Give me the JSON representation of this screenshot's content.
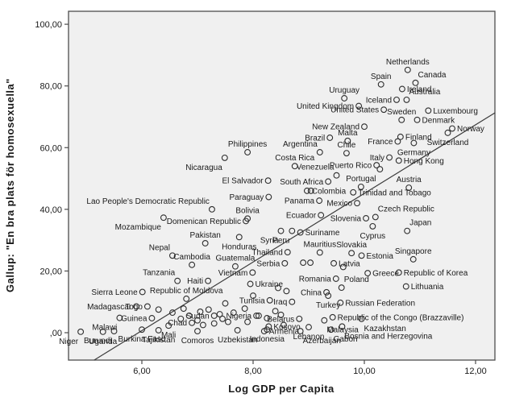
{
  "colors": {
    "plot_background": "#f0f0f0",
    "frame_border": "#4d4d4d",
    "marker_stroke": "#2e2e2e",
    "fit_line": "#3a3a3a",
    "label_text": "#1a1a1a"
  },
  "chart_data": {
    "type": "scatter",
    "title": "",
    "xlabel": "Log GDP per Capita",
    "ylabel": "Gallup: \"En bra plats för homosexuella\"",
    "xlim": [
      4.68,
      12.35
    ],
    "ylim": [
      -8.9,
      104.2
    ],
    "grid": false,
    "legend": "none",
    "x_ticks": [
      {
        "v": 6,
        "label": "6,00"
      },
      {
        "v": 8,
        "label": "8,00"
      },
      {
        "v": 10,
        "label": "10,00"
      },
      {
        "v": 12,
        "label": "12,00"
      }
    ],
    "y_ticks": [
      {
        "v": 0,
        "label": ",00"
      },
      {
        "v": 20,
        "label": "20,00"
      },
      {
        "v": 40,
        "label": "40,00"
      },
      {
        "v": 60,
        "label": "60,00"
      },
      {
        "v": 80,
        "label": "80,00"
      },
      {
        "v": 100,
        "label": "100,00"
      }
    ],
    "fit_line": {
      "x1": 5.14,
      "y1": -8.9,
      "x2": 12.35,
      "y2": 71.3
    },
    "points": [
      {
        "n": "Netherlands",
        "x": 10.78,
        "y": 85.2,
        "lp": "a"
      },
      {
        "n": "Canada",
        "x": 10.92,
        "y": 81.0,
        "lp": "ar"
      },
      {
        "n": "Spain",
        "x": 10.3,
        "y": 80.5,
        "lp": "a"
      },
      {
        "n": "Ireland",
        "x": 10.68,
        "y": 79.0,
        "lp": "r"
      },
      {
        "n": "Iceland",
        "x": 10.58,
        "y": 75.5,
        "lp": "l"
      },
      {
        "n": "Australia",
        "x": 10.76,
        "y": 75.5,
        "lp": "ar"
      },
      {
        "n": "Uruguay",
        "x": 9.64,
        "y": 76.0,
        "lp": "a"
      },
      {
        "n": "United Kingdom",
        "x": 9.9,
        "y": 73.5,
        "lp": "l"
      },
      {
        "n": "United States",
        "x": 10.35,
        "y": 72.3,
        "lp": "l"
      },
      {
        "n": "Luxembourg",
        "x": 11.15,
        "y": 72.0,
        "lp": "r"
      },
      {
        "n": "Sweden",
        "x": 10.67,
        "y": 69.0,
        "lp": "a"
      },
      {
        "n": "Denmark",
        "x": 10.95,
        "y": 69.0,
        "lp": "r"
      },
      {
        "n": "New Zealand",
        "x": 10.0,
        "y": 66.8,
        "lp": "l"
      },
      {
        "n": "Norway",
        "x": 11.58,
        "y": 66.2,
        "lp": "r"
      },
      {
        "n": "Switzerland",
        "x": 11.5,
        "y": 64.8,
        "lp": "b"
      },
      {
        "n": "Finland",
        "x": 10.65,
        "y": 63.5,
        "lp": "r"
      },
      {
        "n": "France",
        "x": 10.6,
        "y": 62.0,
        "lp": "l"
      },
      {
        "n": "Germany",
        "x": 10.89,
        "y": 61.5,
        "lp": "b"
      },
      {
        "n": "Malta",
        "x": 9.7,
        "y": 62.2,
        "lp": "a"
      },
      {
        "n": "Brazil",
        "x": 9.38,
        "y": 63.2,
        "lp": "l"
      },
      {
        "n": "Chile",
        "x": 9.68,
        "y": 58.2,
        "lp": "a"
      },
      {
        "n": "Philippines",
        "x": 7.9,
        "y": 58.5,
        "lp": "a"
      },
      {
        "n": "Argentina",
        "x": 9.2,
        "y": 58.5,
        "lp": "al"
      },
      {
        "n": "Nicaragua",
        "x": 7.49,
        "y": 56.7,
        "lp": "bl"
      },
      {
        "n": "Italy",
        "x": 10.45,
        "y": 56.8,
        "lp": "l"
      },
      {
        "n": "Hong Kong",
        "x": 10.62,
        "y": 55.8,
        "lp": "r"
      },
      {
        "n": "Costa Rica",
        "x": 8.75,
        "y": 54.0,
        "lp": "a"
      },
      {
        "n": "Puerto Rico",
        "x": 10.22,
        "y": 54.3,
        "lp": "l"
      },
      {
        "n": "",
        "x": 10.28,
        "y": 53.0
      },
      {
        "n": "Venezuela",
        "x": 9.5,
        "y": 51.0,
        "lp": "al"
      },
      {
        "n": "El Salvador",
        "x": 8.27,
        "y": 49.3,
        "lp": "l"
      },
      {
        "n": "South Africa",
        "x": 9.35,
        "y": 49.0,
        "lp": "l"
      },
      {
        "n": "Portugal",
        "x": 9.94,
        "y": 47.3,
        "lp": "a"
      },
      {
        "n": "Austria",
        "x": 10.8,
        "y": 47.0,
        "lp": "a"
      },
      {
        "n": "Colombia",
        "x": 8.97,
        "y": 46.0,
        "lp": "r"
      },
      {
        "n": "",
        "x": 9.04,
        "y": 46.0
      },
      {
        "n": "Trinidad and Tobago",
        "x": 9.8,
        "y": 45.5,
        "lp": "r"
      },
      {
        "n": "Paraguay",
        "x": 8.28,
        "y": 44.0,
        "lp": "l"
      },
      {
        "n": "Panama",
        "x": 9.19,
        "y": 42.8,
        "lp": "l"
      },
      {
        "n": "Mexico",
        "x": 9.87,
        "y": 42.0,
        "lp": "l"
      },
      {
        "n": "Lao People's Democratic Republic",
        "x": 7.26,
        "y": 40.0,
        "lp": "al"
      },
      {
        "n": "Mozambique",
        "x": 6.39,
        "y": 37.3,
        "lp": "bl"
      },
      {
        "n": "Ecuador",
        "x": 9.22,
        "y": 38.1,
        "lp": "l"
      },
      {
        "n": "Slovenia",
        "x": 10.03,
        "y": 37.1,
        "lp": "l"
      },
      {
        "n": "Czech Republic",
        "x": 10.2,
        "y": 37.5,
        "lp": "ar"
      },
      {
        "n": "Bolivia",
        "x": 7.9,
        "y": 37.0,
        "lp": "a"
      },
      {
        "n": "Domenican Republic",
        "x": 7.87,
        "y": 36.2,
        "lp": "l"
      },
      {
        "n": "Japan",
        "x": 10.77,
        "y": 33.0,
        "lp": "ar"
      },
      {
        "n": "Cyprus",
        "x": 10.15,
        "y": 34.5,
        "lp": "b"
      },
      {
        "n": "Suriname",
        "x": 8.85,
        "y": 32.5,
        "lp": "r"
      },
      {
        "n": "Peru",
        "x": 8.7,
        "y": 33.0,
        "lp": "bl"
      },
      {
        "n": "Syria",
        "x": 8.5,
        "y": 33.0,
        "lp": "bl"
      },
      {
        "n": "Pakistan",
        "x": 7.14,
        "y": 29.0,
        "lp": "a"
      },
      {
        "n": "Honduras",
        "x": 7.75,
        "y": 31.0,
        "lp": "b"
      },
      {
        "n": "Nepal",
        "x": 6.55,
        "y": 25.0,
        "lp": "al"
      },
      {
        "n": "Thailand",
        "x": 8.62,
        "y": 26.1,
        "lp": "l"
      },
      {
        "n": "Mauritius",
        "x": 9.2,
        "y": 26.0,
        "lp": "a"
      },
      {
        "n": "Slovakia",
        "x": 9.77,
        "y": 25.8,
        "lp": "a"
      },
      {
        "n": "Estonia",
        "x": 9.95,
        "y": 25.0,
        "lp": "r"
      },
      {
        "n": "Singapore",
        "x": 10.88,
        "y": 23.8,
        "lp": "a"
      },
      {
        "n": "Cambodia",
        "x": 6.9,
        "y": 22.0,
        "lp": "a"
      },
      {
        "n": "Guatemala",
        "x": 7.68,
        "y": 21.5,
        "lp": "a"
      },
      {
        "n": "Serbia",
        "x": 8.57,
        "y": 22.5,
        "lp": "l"
      },
      {
        "n": "",
        "x": 8.9,
        "y": 22.7
      },
      {
        "n": "",
        "x": 9.03,
        "y": 22.7
      },
      {
        "n": "Latvia",
        "x": 9.45,
        "y": 22.5,
        "lp": "r"
      },
      {
        "n": "",
        "x": 9.62,
        "y": 21.3
      },
      {
        "n": "Vietnam",
        "x": 7.99,
        "y": 19.5,
        "lp": "l"
      },
      {
        "n": "Greece",
        "x": 10.06,
        "y": 19.3,
        "lp": "r"
      },
      {
        "n": "Republic of Korea",
        "x": 10.62,
        "y": 19.5,
        "lp": "r"
      },
      {
        "n": "Haiti",
        "x": 7.19,
        "y": 16.8,
        "lp": "l"
      },
      {
        "n": "Tanzania",
        "x": 6.64,
        "y": 16.8,
        "lp": "al"
      },
      {
        "n": "Ukraine",
        "x": 7.95,
        "y": 15.8,
        "lp": "r"
      },
      {
        "n": "Romania",
        "x": 9.49,
        "y": 17.5,
        "lp": "l"
      },
      {
        "n": "Lithuania",
        "x": 10.75,
        "y": 15.0,
        "lp": "r"
      },
      {
        "n": "Poland",
        "x": 9.59,
        "y": 14.6,
        "lp": "ar"
      },
      {
        "n": "Sierra Leone",
        "x": 6.01,
        "y": 13.2,
        "lp": "l"
      },
      {
        "n": "China",
        "x": 9.32,
        "y": 13.1,
        "lp": "l"
      },
      {
        "n": "Turkey",
        "x": 9.35,
        "y": 12.0,
        "lp": "b"
      },
      {
        "n": "Russian Federation",
        "x": 9.57,
        "y": 9.7,
        "lp": "r"
      },
      {
        "n": "Tunisia",
        "x": 8.3,
        "y": 10.5,
        "lp": "l"
      },
      {
        "n": "Iraq",
        "x": 8.7,
        "y": 10.0,
        "lp": "l"
      },
      {
        "n": "Republic of Moldova",
        "x": 6.8,
        "y": 11.0,
        "lp": "a"
      },
      {
        "n": "Madagascar",
        "x": 5.9,
        "y": 8.5,
        "lp": "l"
      },
      {
        "n": "Togo",
        "x": 6.1,
        "y": 8.5,
        "lp": "l"
      },
      {
        "n": "",
        "x": 8.45,
        "y": 14.5
      },
      {
        "n": "",
        "x": 8.6,
        "y": 13.5
      },
      {
        "n": "",
        "x": 8.0,
        "y": 12.0
      },
      {
        "n": "",
        "x": 7.5,
        "y": 9.5
      },
      {
        "n": "Malawi",
        "x": 5.6,
        "y": 4.8,
        "lp": "bl"
      },
      {
        "n": "Guinea",
        "x": 6.18,
        "y": 4.7,
        "lp": "l"
      },
      {
        "n": "Belarus",
        "x": 8.83,
        "y": 4.5,
        "lp": "l"
      },
      {
        "n": "",
        "x": 8.25,
        "y": 4.7
      },
      {
        "n": "Kosovo",
        "x": 8.28,
        "y": 2.0,
        "lp": "r"
      },
      {
        "n": "Sudan",
        "x": 7.3,
        "y": 5.5,
        "lp": "l"
      },
      {
        "n": "Nigeria",
        "x": 8.06,
        "y": 5.5,
        "lp": "l"
      },
      {
        "n": "Chad",
        "x": 6.9,
        "y": 3.2,
        "lp": "l"
      },
      {
        "n": "Republic of the Congo (Brazzaville)",
        "x": 9.43,
        "y": 5.0,
        "lp": "r"
      },
      {
        "n": "Malaysia",
        "x": 9.28,
        "y": 4.0,
        "lp": "br"
      },
      {
        "n": "Kazakhstan",
        "x": 9.95,
        "y": 4.5,
        "lp": "br"
      },
      {
        "n": "Burundi",
        "x": 5.5,
        "y": 0.5,
        "lp": "bl"
      },
      {
        "n": "Burkina Faso",
        "x": 6.0,
        "y": 1.0,
        "lp": "b"
      },
      {
        "n": "Niger",
        "x": 4.9,
        "y": 0.3,
        "lp": "bl"
      },
      {
        "n": "Uganda",
        "x": 5.3,
        "y": 0.3,
        "lp": "b"
      },
      {
        "n": "Tajikistan",
        "x": 6.3,
        "y": 0.8,
        "lp": "b"
      },
      {
        "n": "Mali",
        "x": 6.48,
        "y": 2.3,
        "lp": "b"
      },
      {
        "n": "Comoros",
        "x": 7.0,
        "y": 0.5,
        "lp": "b"
      },
      {
        "n": "Uzbekistan",
        "x": 7.72,
        "y": 0.8,
        "lp": "b"
      },
      {
        "n": "Indonesia",
        "x": 8.25,
        "y": 1.0,
        "lp": "b"
      },
      {
        "n": "Armenia",
        "x": 8.2,
        "y": 0.5,
        "lp": "r"
      },
      {
        "n": "Lebanon",
        "x": 9.0,
        "y": 1.8,
        "lp": "b"
      },
      {
        "n": "Azerbaijan",
        "x": 8.85,
        "y": 0.5,
        "lp": "br"
      },
      {
        "n": "Gabon",
        "x": 9.4,
        "y": 1.0,
        "lp": "br"
      },
      {
        "n": "Bosnia and Herzegovina",
        "x": 9.6,
        "y": 2.0,
        "lp": "br"
      },
      {
        "n": "",
        "x": 6.3,
        "y": 7.5
      },
      {
        "n": "",
        "x": 6.55,
        "y": 6.5
      },
      {
        "n": "",
        "x": 6.7,
        "y": 4.5
      },
      {
        "n": "",
        "x": 6.75,
        "y": 7.8
      },
      {
        "n": "",
        "x": 6.85,
        "y": 5.5
      },
      {
        "n": "",
        "x": 7.0,
        "y": 4.0
      },
      {
        "n": "",
        "x": 7.05,
        "y": 6.8
      },
      {
        "n": "",
        "x": 7.1,
        "y": 2.5
      },
      {
        "n": "",
        "x": 7.2,
        "y": 7.5
      },
      {
        "n": "",
        "x": 7.3,
        "y": 3.0
      },
      {
        "n": "",
        "x": 7.4,
        "y": 6.0
      },
      {
        "n": "",
        "x": 7.45,
        "y": 4.5
      },
      {
        "n": "",
        "x": 7.55,
        "y": 3.5
      },
      {
        "n": "",
        "x": 7.65,
        "y": 6.5
      },
      {
        "n": "",
        "x": 7.85,
        "y": 7.8
      },
      {
        "n": "",
        "x": 7.9,
        "y": 3.5
      },
      {
        "n": "",
        "x": 8.1,
        "y": 5.5
      },
      {
        "n": "",
        "x": 8.4,
        "y": 7.0
      },
      {
        "n": "",
        "x": 8.5,
        "y": 5.8
      },
      {
        "n": "",
        "x": 8.55,
        "y": 2.5
      }
    ]
  }
}
